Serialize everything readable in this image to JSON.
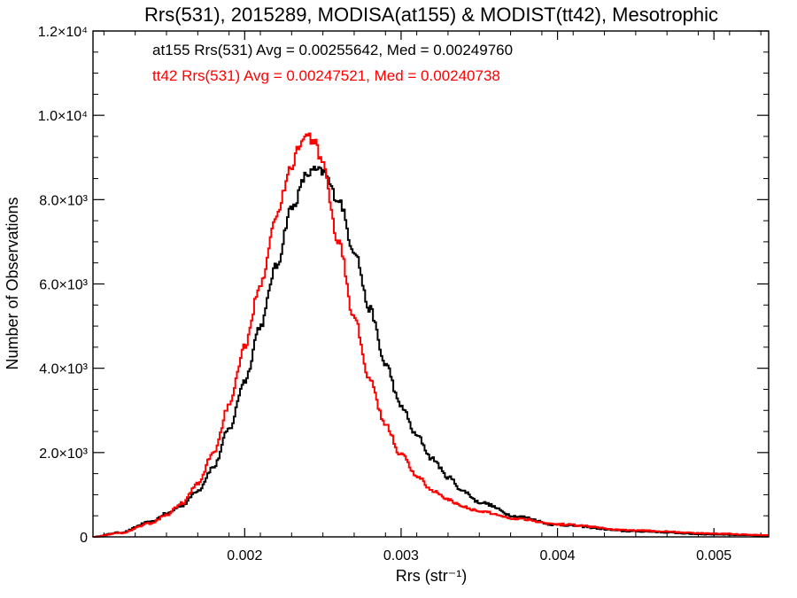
{
  "chart_data": {
    "type": "line",
    "title": "Rrs(531), 2015289, MODISA(at155) & MODIST(tt42), Mesotrophic",
    "xlabel": "Rrs (str⁻¹)",
    "ylabel": "Number of Observations",
    "xlim": [
      0.00103,
      0.00535
    ],
    "ylim": [
      0,
      12000
    ],
    "x_ticks": [
      {
        "value": 0.002,
        "label": "0.002"
      },
      {
        "value": 0.003,
        "label": "0.003"
      },
      {
        "value": 0.004,
        "label": "0.004"
      },
      {
        "value": 0.005,
        "label": "0.005"
      }
    ],
    "y_ticks": [
      {
        "value": 0,
        "label": "0"
      },
      {
        "value": 2000,
        "label": "2.0×10³"
      },
      {
        "value": 4000,
        "label": "4.0×10³"
      },
      {
        "value": 6000,
        "label": "6.0×10³"
      },
      {
        "value": 8000,
        "label": "8.0×10³"
      },
      {
        "value": 10000,
        "label": "1.0×10⁴"
      },
      {
        "value": 12000,
        "label": "1.2×10⁴"
      }
    ],
    "annotations": [
      {
        "text": "at155 Rrs(531) Avg = 0.00255642, Med = 0.00249760",
        "color": "#000000"
      },
      {
        "text": "tt42 Rrs(531) Avg = 0.00247521, Med = 0.00240738",
        "color": "#ff0000"
      }
    ],
    "series": [
      {
        "color": "#000000",
        "x": [
          0.00103,
          0.0012,
          0.0014,
          0.0015,
          0.0016,
          0.0017,
          0.0018,
          0.0019,
          0.002,
          0.0021,
          0.0022,
          0.0023,
          0.0024,
          0.00245,
          0.0025,
          0.0026,
          0.0027,
          0.0028,
          0.0029,
          0.003,
          0.0031,
          0.0032,
          0.0033,
          0.0034,
          0.0035,
          0.00375,
          0.004,
          0.0045,
          0.005,
          0.00535
        ],
        "y": [
          0,
          100,
          350,
          550,
          750,
          1100,
          1650,
          2550,
          3700,
          5000,
          6400,
          7800,
          8600,
          8700,
          8650,
          8000,
          6800,
          5400,
          4100,
          3100,
          2400,
          1850,
          1420,
          1080,
          820,
          480,
          280,
          130,
          60,
          30
        ]
      },
      {
        "color": "#ff0000",
        "x": [
          0.00103,
          0.0012,
          0.0014,
          0.0015,
          0.0016,
          0.0017,
          0.0018,
          0.0019,
          0.002,
          0.0021,
          0.0022,
          0.0023,
          0.00235,
          0.0024,
          0.00245,
          0.0025,
          0.0026,
          0.0027,
          0.0028,
          0.0029,
          0.003,
          0.0031,
          0.0032,
          0.0033,
          0.0034,
          0.0035,
          0.00375,
          0.004,
          0.0045,
          0.005,
          0.00535
        ],
        "y": [
          0,
          90,
          320,
          520,
          800,
          1250,
          2000,
          3100,
          4500,
          6000,
          7600,
          8800,
          9300,
          9500,
          9350,
          8800,
          7000,
          5200,
          3700,
          2650,
          1950,
          1450,
          1100,
          880,
          720,
          600,
          430,
          300,
          150,
          80,
          40
        ]
      }
    ]
  }
}
